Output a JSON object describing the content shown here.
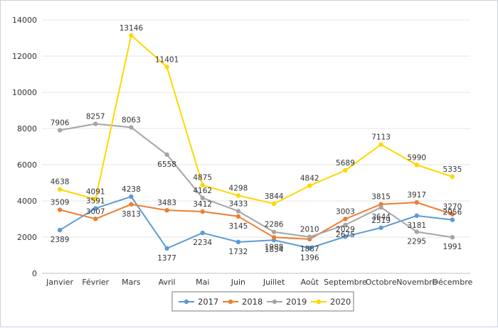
{
  "chart_data": {
    "type": "line",
    "categories": [
      "Janvier",
      "Février",
      "Mars",
      "Avril",
      "Mai",
      "Juin",
      "Juillet",
      "Août",
      "Septembre",
      "Octobre",
      "Novembre",
      "Décembre"
    ],
    "ylim": [
      0,
      14000
    ],
    "yticks": [
      "0",
      "2000",
      "4000",
      "6000",
      "8000",
      "10000",
      "12000",
      "14000"
    ],
    "grid": true,
    "legend_position": "bottom",
    "title": "",
    "xlabel": "",
    "ylabel": "",
    "series": [
      {
        "name": "2017",
        "color": "#5b9bd5",
        "values": [
          2389,
          3591,
          4238,
          1377,
          2234,
          1732,
          1834,
          1396,
          2029,
          2519,
          3181,
          2956
        ]
      },
      {
        "name": "2018",
        "color": "#ed7d31",
        "values": [
          3509,
          3007,
          3813,
          3483,
          3412,
          3145,
          1988,
          1887,
          3003,
          3815,
          3917,
          3270
        ]
      },
      {
        "name": "2019",
        "color": "#a5a5a5",
        "values": [
          7906,
          8257,
          8063,
          6558,
          4162,
          3433,
          2286,
          2010,
          2675,
          3644,
          2295,
          1991
        ]
      },
      {
        "name": "2020",
        "color": "#ffd700",
        "values": [
          4638,
          4091,
          13146,
          11401,
          4875,
          4298,
          3844,
          4842,
          5689,
          7113,
          5990,
          5335
        ]
      }
    ]
  }
}
